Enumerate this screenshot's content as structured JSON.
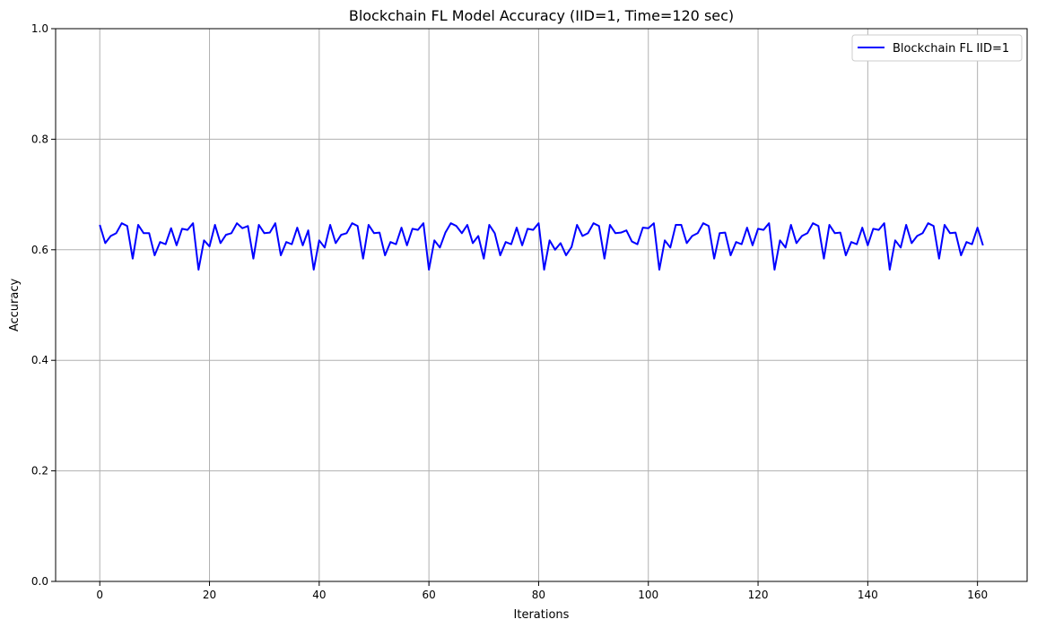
{
  "chart_data": {
    "type": "line",
    "title": "Blockchain FL Model Accuracy (IID=1, Time=120 sec)",
    "xlabel": "Iterations",
    "ylabel": "Accuracy",
    "xlim": [
      -8.05,
      169.05
    ],
    "ylim": [
      0,
      1
    ],
    "xticks": [
      0,
      20,
      40,
      60,
      80,
      100,
      120,
      140,
      160
    ],
    "yticks": [
      0.0,
      0.2,
      0.4,
      0.6,
      0.8,
      1.0
    ],
    "xtick_labels": [
      "0",
      "20",
      "40",
      "60",
      "80",
      "100",
      "120",
      "140",
      "160"
    ],
    "ytick_labels": [
      "0.0",
      "0.2",
      "0.4",
      "0.6",
      "0.8",
      "1.0"
    ],
    "grid": true,
    "legend_position": "top-right",
    "series": [
      {
        "name": "Blockchain FL IID=1",
        "color": "#0000ff",
        "x": [
          0,
          1,
          2,
          3,
          4,
          5,
          6,
          7,
          8,
          9,
          10,
          11,
          12,
          13,
          14,
          15,
          16,
          17,
          18,
          19,
          20,
          21,
          22,
          23,
          24,
          25,
          26,
          27,
          28,
          29,
          30,
          31,
          32,
          33,
          34,
          35,
          36,
          37,
          38,
          39,
          40,
          41,
          42,
          43,
          44,
          45,
          46,
          47,
          48,
          49,
          50,
          51,
          52,
          53,
          54,
          55,
          56,
          57,
          58,
          59,
          60,
          61,
          62,
          63,
          64,
          65,
          66,
          67,
          68,
          69,
          70,
          71,
          72,
          73,
          74,
          75,
          76,
          77,
          78,
          79,
          80,
          81,
          82,
          83,
          84,
          85,
          86,
          87,
          88,
          89,
          90,
          91,
          92,
          93,
          94,
          95,
          96,
          97,
          98,
          99,
          100,
          101,
          102,
          103,
          104,
          105,
          106,
          107,
          108,
          109,
          110,
          111,
          112,
          113,
          114,
          115,
          116,
          117,
          118,
          119,
          120,
          121,
          122,
          123,
          124,
          125,
          126,
          127,
          128,
          129,
          130,
          131,
          132,
          133,
          134,
          135,
          136,
          137,
          138,
          139,
          140,
          141,
          142,
          143,
          144,
          145,
          146,
          147,
          148,
          149,
          150,
          151,
          152,
          153,
          154,
          155,
          156,
          157,
          158,
          159,
          160,
          161
        ],
        "values": [
          0.645,
          0.612,
          0.625,
          0.63,
          0.648,
          0.643,
          0.584,
          0.645,
          0.63,
          0.63,
          0.59,
          0.614,
          0.61,
          0.639,
          0.608,
          0.638,
          0.636,
          0.648,
          0.564,
          0.617,
          0.606,
          0.645,
          0.612,
          0.627,
          0.63,
          0.648,
          0.639,
          0.643,
          0.584,
          0.645,
          0.63,
          0.631,
          0.648,
          0.59,
          0.614,
          0.61,
          0.64,
          0.608,
          0.635,
          0.564,
          0.617,
          0.604,
          0.645,
          0.612,
          0.627,
          0.63,
          0.648,
          0.643,
          0.584,
          0.645,
          0.63,
          0.631,
          0.59,
          0.614,
          0.61,
          0.64,
          0.608,
          0.638,
          0.636,
          0.648,
          0.564,
          0.617,
          0.604,
          0.631,
          0.648,
          0.643,
          0.63,
          0.645,
          0.612,
          0.625,
          0.584,
          0.645,
          0.63,
          0.59,
          0.614,
          0.61,
          0.64,
          0.608,
          0.638,
          0.636,
          0.648,
          0.564,
          0.617,
          0.6,
          0.612,
          0.59,
          0.605,
          0.645,
          0.625,
          0.63,
          0.648,
          0.643,
          0.584,
          0.645,
          0.63,
          0.631,
          0.635,
          0.615,
          0.61,
          0.64,
          0.639,
          0.648,
          0.564,
          0.617,
          0.604,
          0.645,
          0.645,
          0.612,
          0.625,
          0.63,
          0.648,
          0.643,
          0.584,
          0.63,
          0.631,
          0.59,
          0.614,
          0.61,
          0.64,
          0.608,
          0.638,
          0.636,
          0.648,
          0.564,
          0.617,
          0.604,
          0.645,
          0.612,
          0.625,
          0.63,
          0.648,
          0.643,
          0.584,
          0.645,
          0.63,
          0.631,
          0.59,
          0.614,
          0.61,
          0.64,
          0.608,
          0.638,
          0.636,
          0.648,
          0.564,
          0.617,
          0.604,
          0.645,
          0.612,
          0.625,
          0.63,
          0.648,
          0.643,
          0.584,
          0.645,
          0.63,
          0.631,
          0.59,
          0.614,
          0.61,
          0.64,
          0.608
        ]
      }
    ]
  }
}
